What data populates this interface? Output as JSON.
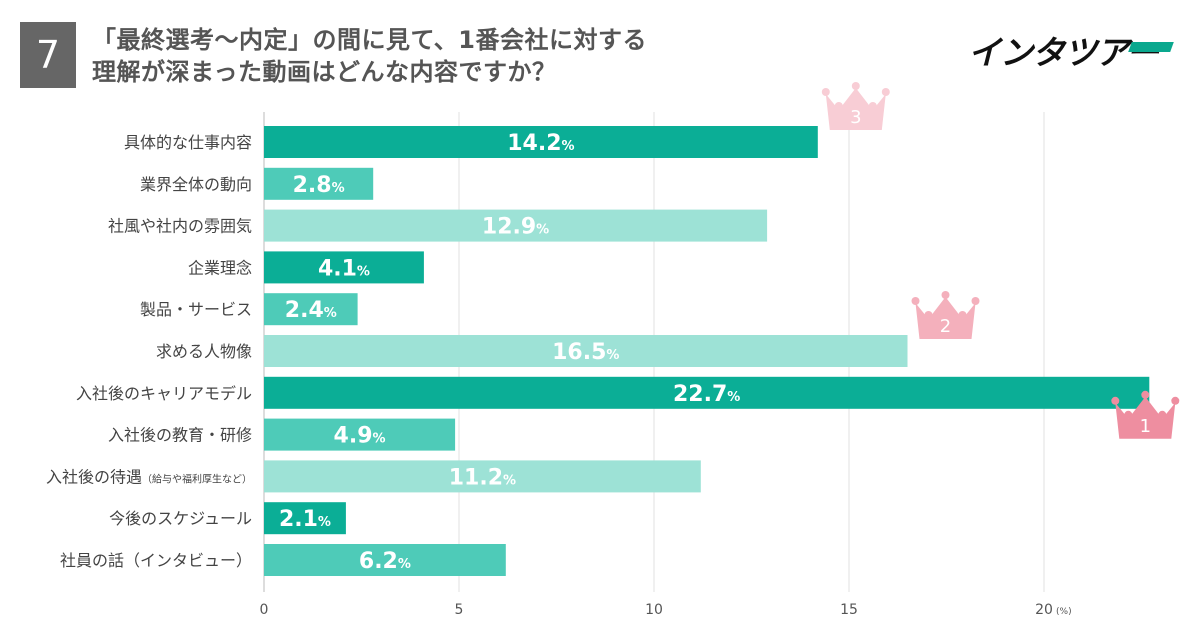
{
  "header": {
    "number": "7",
    "title_line1": "「最終選考〜内定」の間に見て、1番会社に対する",
    "title_line2": "理解が深まった動画はどんな内容ですか？",
    "logo_text": "インタツアー"
  },
  "chart_data": {
    "type": "bar",
    "orientation": "horizontal",
    "categories": [
      "具体的な仕事内容",
      "業界全体の動向",
      "社風や社内の雰囲気",
      "企業理念",
      "製品・サービス",
      "求める人物像",
      "入社後のキャリアモデル",
      "入社後の教育・研修",
      "入社後の待遇",
      "今後のスケジュール",
      "社員の話（インタビュー）"
    ],
    "category_notes": [
      "",
      "",
      "",
      "",
      "",
      "",
      "",
      "",
      "（給与や福利厚生など）",
      "",
      ""
    ],
    "values": [
      14.2,
      2.8,
      12.9,
      4.1,
      2.4,
      16.5,
      22.7,
      4.9,
      11.2,
      2.1,
      6.2
    ],
    "value_suffix": "%",
    "bar_colors": [
      "#0bae96",
      "#4ecbb8",
      "#9de2d6",
      "#0bae96",
      "#4ecbb8",
      "#9de2d6",
      "#0bae96",
      "#4ecbb8",
      "#9de2d6",
      "#0bae96",
      "#4ecbb8"
    ],
    "x_ticks": [
      "0",
      "5",
      "10",
      "15",
      "20"
    ],
    "x_unit": "(%)",
    "xlim": [
      0,
      23
    ],
    "grid": true,
    "rankings": [
      {
        "rank": "1",
        "category_index": 6,
        "color": "#ee8ea0"
      },
      {
        "rank": "2",
        "category_index": 5,
        "color": "#f4b0bc"
      },
      {
        "rank": "3",
        "category_index": 0,
        "color": "#f8cdd5"
      }
    ]
  }
}
